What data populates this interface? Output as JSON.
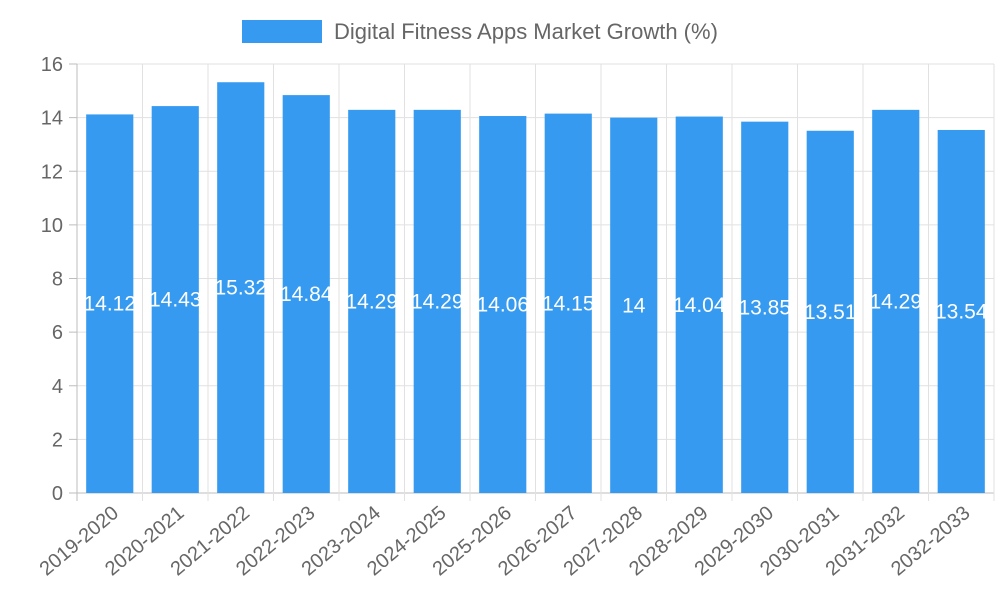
{
  "chart_data": {
    "type": "bar",
    "title": "",
    "legend": [
      "Digital Fitness Apps Market Growth (%)"
    ],
    "legend_position": "top",
    "xlabel": "",
    "ylabel": "",
    "ylim": [
      0,
      16
    ],
    "yticks": [
      "0",
      "2",
      "4",
      "6",
      "8",
      "10",
      "12",
      "14",
      "16"
    ],
    "categories": [
      "2019-2020",
      "2020-2021",
      "2021-2022",
      "2022-2023",
      "2023-2024",
      "2024-2025",
      "2025-2026",
      "2026-2027",
      "2027-2028",
      "2028-2029",
      "2029-2030",
      "2030-2031",
      "2031-2032",
      "2032-2033"
    ],
    "series": [
      {
        "name": "Digital Fitness Apps Market Growth (%)",
        "values": [
          14.12,
          14.43,
          15.32,
          14.84,
          14.29,
          14.29,
          14.06,
          14.15,
          14,
          14.04,
          13.85,
          13.51,
          14.29,
          13.54
        ],
        "labels": [
          "14.12",
          "14.43",
          "15.32",
          "14.84",
          "14.29",
          "14.29",
          "14.06",
          "14.15",
          "14",
          "14.04",
          "13.85",
          "13.51",
          "14.29",
          "13.54"
        ],
        "color": "#369bf0"
      }
    ],
    "grid": true
  }
}
